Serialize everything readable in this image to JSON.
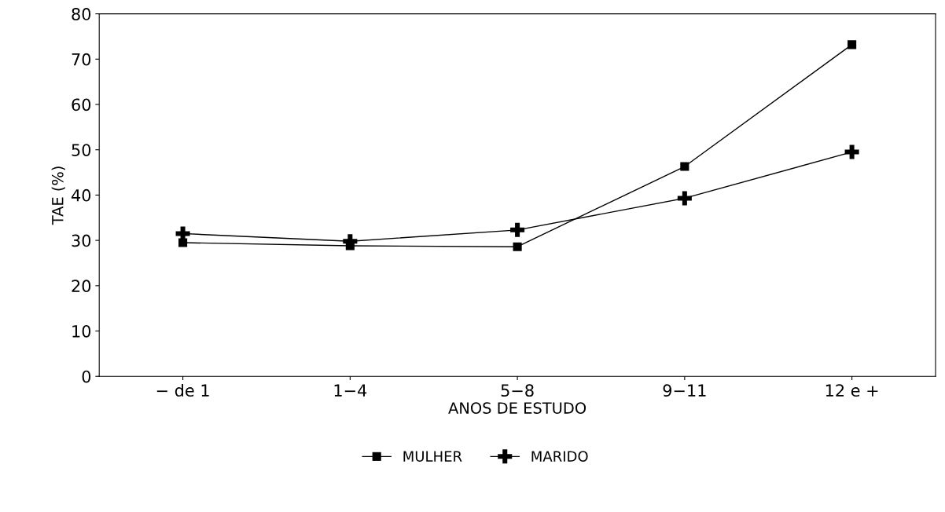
{
  "chart_data": {
    "type": "line",
    "xlabel": "ANOS DE ESTUDO",
    "ylabel": "TAE (%)",
    "categories": [
      "− de 1",
      "1−4",
      "5−8",
      "9−11",
      "12 e +"
    ],
    "series": [
      {
        "name": "MULHER",
        "color": "#000000",
        "marker": "square",
        "values": [
          29.5,
          28.8,
          28.6,
          46.3,
          73.2
        ]
      },
      {
        "name": "MARIDO",
        "color": "#000000",
        "marker": "cross",
        "values": [
          31.5,
          29.8,
          32.3,
          39.3,
          49.5
        ]
      }
    ],
    "ylim": [
      0,
      80
    ],
    "yticks": [
      0,
      10,
      20,
      30,
      40,
      50,
      60,
      70,
      80
    ],
    "grid": false,
    "legend": "bottom",
    "line_style": "solid"
  }
}
